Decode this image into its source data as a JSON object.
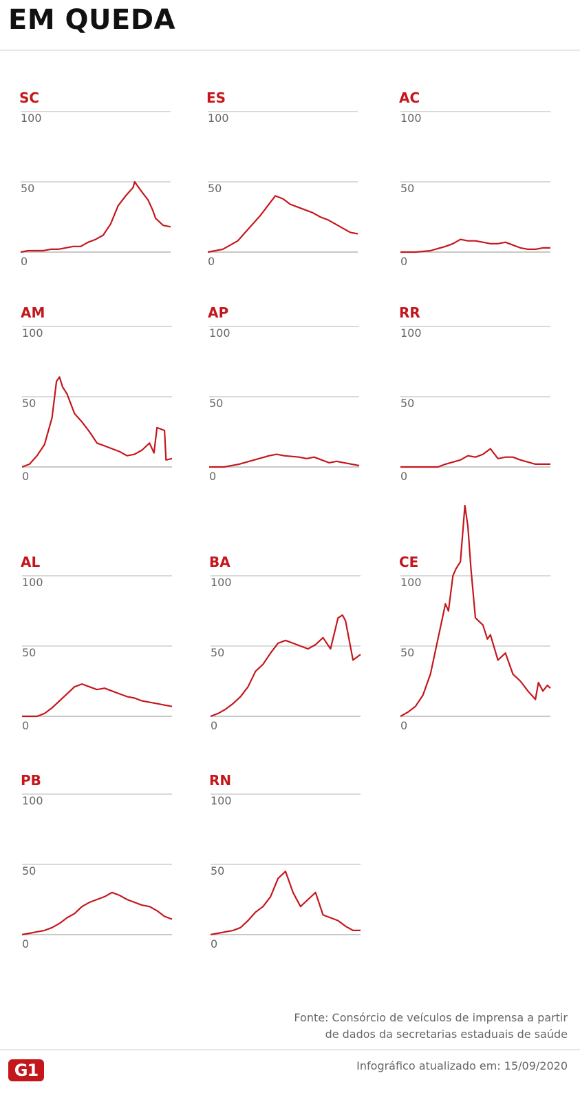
{
  "header": {
    "title": "EM QUEDA"
  },
  "footer": {
    "source_line1": "Fonte: Consórcio de veículos de imprensa a partir",
    "source_line2": "de dados da secretarias estaduais de saúde",
    "updated": "Infográfico atualizado em: 15/09/2020",
    "logo": "G1"
  },
  "colors": {
    "accent": "#c4171c",
    "grid": "#b5b5b5",
    "text_muted": "#666666"
  },
  "chart_data": [
    {
      "type": "line",
      "title": "SC",
      "ylim": [
        0,
        100
      ],
      "yticks": [
        "0",
        "50",
        "100"
      ],
      "grid": true,
      "x": [
        0,
        5,
        10,
        15,
        20,
        25,
        30,
        35,
        40,
        45,
        50,
        55,
        60,
        65,
        70,
        75,
        76,
        80,
        85,
        88,
        90,
        95,
        100
      ],
      "values": [
        0,
        1,
        1,
        1,
        2,
        2,
        3,
        4,
        4,
        7,
        9,
        12,
        20,
        33,
        40,
        46,
        50,
        44,
        37,
        30,
        24,
        19,
        18
      ]
    },
    {
      "type": "line",
      "title": "ES",
      "ylim": [
        0,
        100
      ],
      "yticks": [
        "0",
        "50",
        "100"
      ],
      "grid": true,
      "x": [
        0,
        5,
        10,
        15,
        20,
        25,
        30,
        35,
        40,
        45,
        50,
        55,
        60,
        65,
        70,
        75,
        80,
        85,
        90,
        95,
        100
      ],
      "values": [
        0,
        1,
        2,
        5,
        8,
        14,
        20,
        26,
        33,
        40,
        38,
        34,
        32,
        30,
        28,
        25,
        23,
        20,
        17,
        14,
        13
      ]
    },
    {
      "type": "line",
      "title": "AC",
      "ylim": [
        0,
        100
      ],
      "yticks": [
        "0",
        "50",
        "100"
      ],
      "grid": true,
      "x": [
        0,
        10,
        20,
        30,
        35,
        40,
        45,
        50,
        55,
        60,
        65,
        70,
        75,
        80,
        85,
        90,
        95,
        100
      ],
      "values": [
        0,
        0,
        1,
        4,
        6,
        9,
        8,
        8,
        7,
        6,
        6,
        7,
        5,
        3,
        2,
        2,
        3,
        3
      ]
    },
    {
      "type": "line",
      "title": "AM",
      "ylim": [
        0,
        100
      ],
      "yticks": [
        "0",
        "50",
        "100"
      ],
      "grid": true,
      "x": [
        0,
        5,
        10,
        15,
        20,
        23,
        25,
        27,
        30,
        35,
        40,
        45,
        50,
        55,
        60,
        65,
        70,
        75,
        80,
        85,
        88,
        90,
        95,
        96,
        100
      ],
      "values": [
        0,
        2,
        8,
        16,
        35,
        61,
        64,
        57,
        52,
        38,
        32,
        25,
        17,
        15,
        13,
        11,
        8,
        9,
        12,
        17,
        10,
        28,
        26,
        5,
        6
      ]
    },
    {
      "type": "line",
      "title": "AP",
      "ylim": [
        0,
        100
      ],
      "yticks": [
        "0",
        "50",
        "100"
      ],
      "grid": true,
      "x": [
        0,
        10,
        20,
        30,
        40,
        45,
        50,
        60,
        65,
        70,
        75,
        80,
        85,
        90,
        95,
        100
      ],
      "values": [
        0,
        0,
        2,
        5,
        8,
        9,
        8,
        7,
        6,
        7,
        5,
        3,
        4,
        3,
        2,
        1
      ]
    },
    {
      "type": "line",
      "title": "RR",
      "ylim": [
        0,
        100
      ],
      "yticks": [
        "0",
        "50",
        "100"
      ],
      "grid": true,
      "x": [
        0,
        10,
        20,
        25,
        30,
        40,
        45,
        50,
        55,
        60,
        65,
        70,
        75,
        80,
        90,
        95,
        100
      ],
      "values": [
        0,
        0,
        0,
        0,
        2,
        5,
        8,
        7,
        9,
        13,
        6,
        7,
        7,
        5,
        2,
        2,
        2
      ]
    },
    {
      "type": "line",
      "title": "AL",
      "ylim": [
        0,
        100
      ],
      "yticks": [
        "0",
        "50",
        "100"
      ],
      "grid": true,
      "x": [
        0,
        10,
        15,
        20,
        25,
        30,
        35,
        40,
        45,
        50,
        55,
        60,
        65,
        70,
        75,
        80,
        85,
        90,
        95,
        100
      ],
      "values": [
        0,
        0,
        2,
        6,
        11,
        16,
        21,
        23,
        21,
        19,
        20,
        18,
        16,
        14,
        13,
        11,
        10,
        9,
        8,
        7
      ]
    },
    {
      "type": "line",
      "title": "BA",
      "ylim": [
        0,
        100
      ],
      "yticks": [
        "0",
        "50",
        "100"
      ],
      "grid": true,
      "x": [
        0,
        5,
        10,
        15,
        20,
        25,
        30,
        35,
        40,
        45,
        50,
        55,
        60,
        65,
        70,
        75,
        80,
        85,
        88,
        90,
        95,
        100
      ],
      "values": [
        0,
        2,
        5,
        9,
        14,
        21,
        32,
        37,
        45,
        52,
        54,
        52,
        50,
        48,
        51,
        56,
        48,
        70,
        72,
        68,
        40,
        44
      ]
    },
    {
      "type": "line",
      "title": "CE",
      "ylim": [
        0,
        100
      ],
      "yticks": [
        "0",
        "50",
        "100"
      ],
      "grid": true,
      "x": [
        0,
        5,
        10,
        15,
        20,
        25,
        30,
        32,
        35,
        37,
        40,
        43,
        45,
        47,
        50,
        55,
        58,
        60,
        65,
        70,
        75,
        80,
        85,
        90,
        92,
        95,
        98,
        100
      ],
      "values": [
        0,
        3,
        7,
        15,
        30,
        55,
        80,
        75,
        100,
        105,
        110,
        150,
        135,
        105,
        70,
        65,
        55,
        58,
        40,
        45,
        30,
        25,
        18,
        12,
        24,
        18,
        22,
        20
      ]
    },
    {
      "type": "line",
      "title": "PB",
      "ylim": [
        0,
        100
      ],
      "yticks": [
        "0",
        "50",
        "100"
      ],
      "grid": true,
      "x": [
        0,
        5,
        10,
        15,
        20,
        25,
        30,
        35,
        40,
        45,
        50,
        55,
        60,
        65,
        70,
        75,
        80,
        85,
        90,
        95,
        100
      ],
      "values": [
        0,
        1,
        2,
        3,
        5,
        8,
        12,
        15,
        20,
        23,
        25,
        27,
        30,
        28,
        25,
        23,
        21,
        20,
        17,
        13,
        11
      ]
    },
    {
      "type": "line",
      "title": "RN",
      "ylim": [
        0,
        100
      ],
      "yticks": [
        "0",
        "50",
        "100"
      ],
      "grid": true,
      "x": [
        0,
        10,
        15,
        20,
        25,
        30,
        35,
        40,
        45,
        50,
        55,
        60,
        65,
        70,
        75,
        80,
        85,
        90,
        95,
        100
      ],
      "values": [
        0,
        2,
        3,
        5,
        10,
        16,
        20,
        27,
        40,
        45,
        30,
        20,
        25,
        30,
        14,
        12,
        10,
        6,
        3,
        3
      ]
    }
  ]
}
